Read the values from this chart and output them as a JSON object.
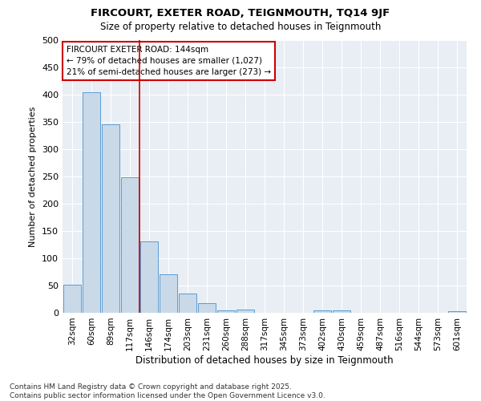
{
  "title_line1": "FIRCOURT, EXETER ROAD, TEIGNMOUTH, TQ14 9JF",
  "title_line2": "Size of property relative to detached houses in Teignmouth",
  "xlabel": "Distribution of detached houses by size in Teignmouth",
  "ylabel": "Number of detached properties",
  "bar_labels": [
    "32sqm",
    "60sqm",
    "89sqm",
    "117sqm",
    "146sqm",
    "174sqm",
    "203sqm",
    "231sqm",
    "260sqm",
    "288sqm",
    "317sqm",
    "345sqm",
    "373sqm",
    "402sqm",
    "430sqm",
    "459sqm",
    "487sqm",
    "516sqm",
    "544sqm",
    "573sqm",
    "601sqm"
  ],
  "bar_values": [
    52,
    404,
    346,
    248,
    131,
    71,
    36,
    18,
    5,
    6,
    0,
    0,
    0,
    5,
    4,
    0,
    0,
    0,
    0,
    0,
    3
  ],
  "bar_color": "#c9d9e8",
  "bar_edge_color": "#5b9bd5",
  "vline_x_index": 3.5,
  "vline_color": "#cc0000",
  "annotation_title": "FIRCOURT EXETER ROAD: 144sqm",
  "annotation_line1": "← 79% of detached houses are smaller (1,027)",
  "annotation_line2": "21% of semi-detached houses are larger (273) →",
  "annotation_box_color": "#cc0000",
  "ylim": [
    0,
    500
  ],
  "yticks": [
    0,
    50,
    100,
    150,
    200,
    250,
    300,
    350,
    400,
    450,
    500
  ],
  "background_color": "#e8eef4",
  "footer_line1": "Contains HM Land Registry data © Crown copyright and database right 2025.",
  "footer_line2": "Contains public sector information licensed under the Open Government Licence v3.0."
}
